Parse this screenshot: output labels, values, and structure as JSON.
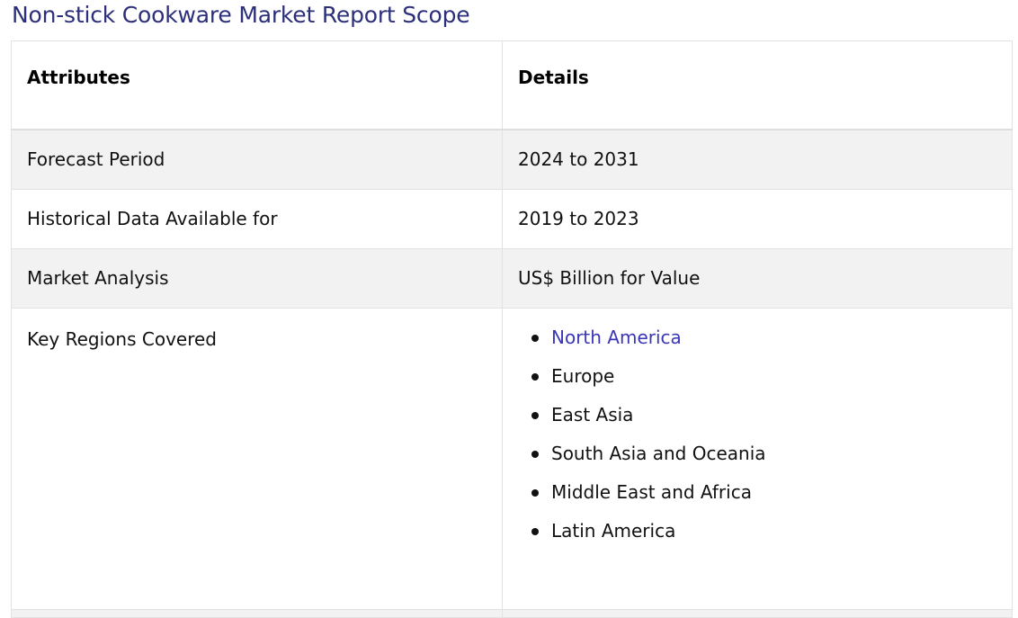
{
  "title": "Non-stick Cookware Market Report Scope",
  "table": {
    "headers": {
      "attributes": "Attributes",
      "details": "Details"
    },
    "rows": [
      {
        "attribute": "Forecast Period",
        "detail": "2024 to 2031"
      },
      {
        "attribute": "Historical Data Available for",
        "detail": "2019 to 2023"
      },
      {
        "attribute": "Market Analysis",
        "detail": "US$ Billion for Value"
      }
    ],
    "regions": {
      "attribute": "Key Regions Covered",
      "items": [
        "North America",
        "Europe",
        "East Asia",
        "South Asia and Oceania",
        "Middle East and Africa",
        "Latin America"
      ]
    }
  },
  "colors": {
    "title": "#2c2f7a",
    "link": "#3b36b8",
    "row_shade": "#f2f2f2",
    "border": "#e2e2e2"
  }
}
